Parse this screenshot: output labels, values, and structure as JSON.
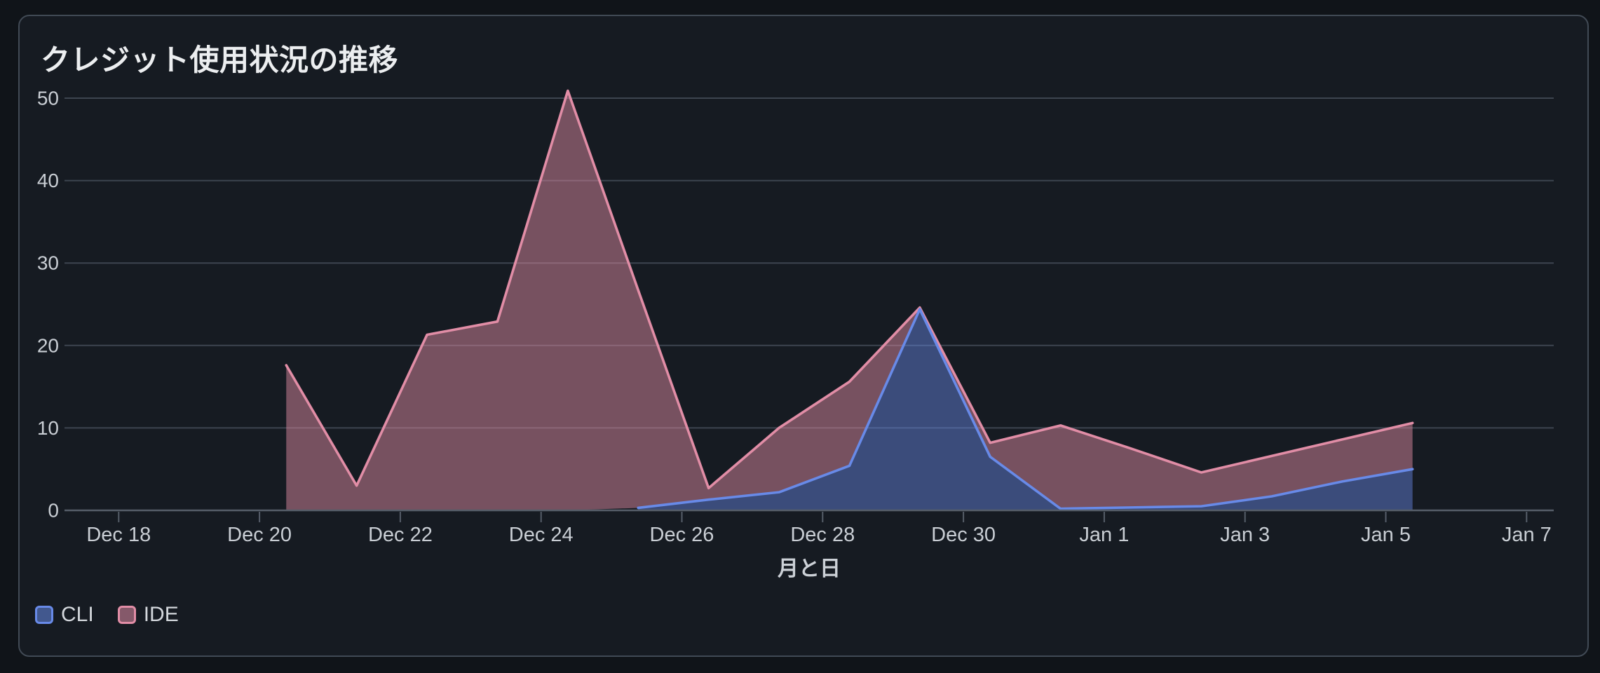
{
  "chart_data": {
    "type": "area",
    "stacked": true,
    "title": "クレジット使用状況の推移",
    "xlabel": "月と日",
    "ylabel": "",
    "ylim": [
      0,
      50
    ],
    "yticks": [
      0,
      10,
      20,
      30,
      40,
      50
    ],
    "xticks": {
      "labels": [
        "Dec 18",
        "Dec 20",
        "Dec 22",
        "Dec 24",
        "Dec 26",
        "Dec 28",
        "Dec 30",
        "Jan 1",
        "Jan 3",
        "Jan 5",
        "Jan 7"
      ],
      "positions_days": [
        0,
        2,
        4,
        6,
        8,
        10,
        12,
        14,
        16,
        18,
        20
      ]
    },
    "x_range_days": [
      0,
      20
    ],
    "grid": "horizontal",
    "legend": {
      "position": "bottom-left",
      "items": [
        "CLI",
        "IDE"
      ]
    },
    "series": [
      {
        "name": "CLI",
        "color": "#688ae8",
        "fill_opacity": 0.45,
        "points": [
          {
            "date": "Dec 25",
            "x": 7.38,
            "value": 0.3
          },
          {
            "date": "Dec 26",
            "x": 8.38,
            "value": 1.3
          },
          {
            "date": "Dec 27",
            "x": 9.38,
            "value": 2.2
          },
          {
            "date": "Dec 28",
            "x": 10.38,
            "value": 5.4
          },
          {
            "date": "Dec 29",
            "x": 11.38,
            "value": 24.4
          },
          {
            "date": "Dec 30",
            "x": 12.38,
            "value": 6.5
          },
          {
            "date": "Dec 31",
            "x": 13.38,
            "value": 0.2
          },
          {
            "date": "Jan 1",
            "x": 14.38,
            "value": 0.35
          },
          {
            "date": "Jan 2",
            "x": 15.38,
            "value": 0.5
          },
          {
            "date": "Jan 3",
            "x": 16.38,
            "value": 1.7
          },
          {
            "date": "Jan 4",
            "x": 17.38,
            "value": 3.5
          },
          {
            "date": "Jan 5",
            "x": 18.38,
            "value": 5.0
          }
        ]
      },
      {
        "name": "IDE",
        "color": "#e18da6",
        "fill_opacity": 0.48,
        "points": [
          {
            "date": "Dec 20",
            "x": 2.38,
            "value": 17.6
          },
          {
            "date": "Dec 21",
            "x": 3.38,
            "value": 3.0
          },
          {
            "date": "Dec 22",
            "x": 4.38,
            "value": 21.3
          },
          {
            "date": "Dec 23",
            "x": 5.38,
            "value": 22.9
          },
          {
            "date": "Dec 24",
            "x": 6.38,
            "value": 50.9
          },
          {
            "date": "Dec 25",
            "x": 7.38,
            "value": 26.4
          },
          {
            "date": "Dec 26",
            "x": 8.38,
            "value": 1.4
          },
          {
            "date": "Dec 27",
            "x": 9.38,
            "value": 7.8
          },
          {
            "date": "Dec 28",
            "x": 10.38,
            "value": 10.2
          },
          {
            "date": "Dec 29",
            "x": 11.38,
            "value": 0.2
          },
          {
            "date": "Dec 30",
            "x": 12.38,
            "value": 1.7
          },
          {
            "date": "Dec 31",
            "x": 13.38,
            "value": 10.1
          },
          {
            "date": "Jan 1",
            "x": 14.38,
            "value": 7.15
          },
          {
            "date": "Jan 2",
            "x": 15.38,
            "value": 4.1
          },
          {
            "date": "Jan 3",
            "x": 16.38,
            "value": 4.9
          },
          {
            "date": "Jan 4",
            "x": 17.38,
            "value": 5.1
          },
          {
            "date": "Jan 5",
            "x": 18.38,
            "value": 5.6
          }
        ]
      }
    ],
    "colors": {
      "page_background": "#101419",
      "card_background": "#161b22",
      "card_border": "#414a55",
      "grid_line": "#3d4550",
      "axis_line": "#565e69",
      "tick_text": "#c9ced4",
      "title_text": "#eceef0",
      "axis_title_text": "#ccd1d7",
      "legend_text": "#d3d7dc",
      "cli": "#688ae8",
      "ide": "#e18da6"
    }
  }
}
